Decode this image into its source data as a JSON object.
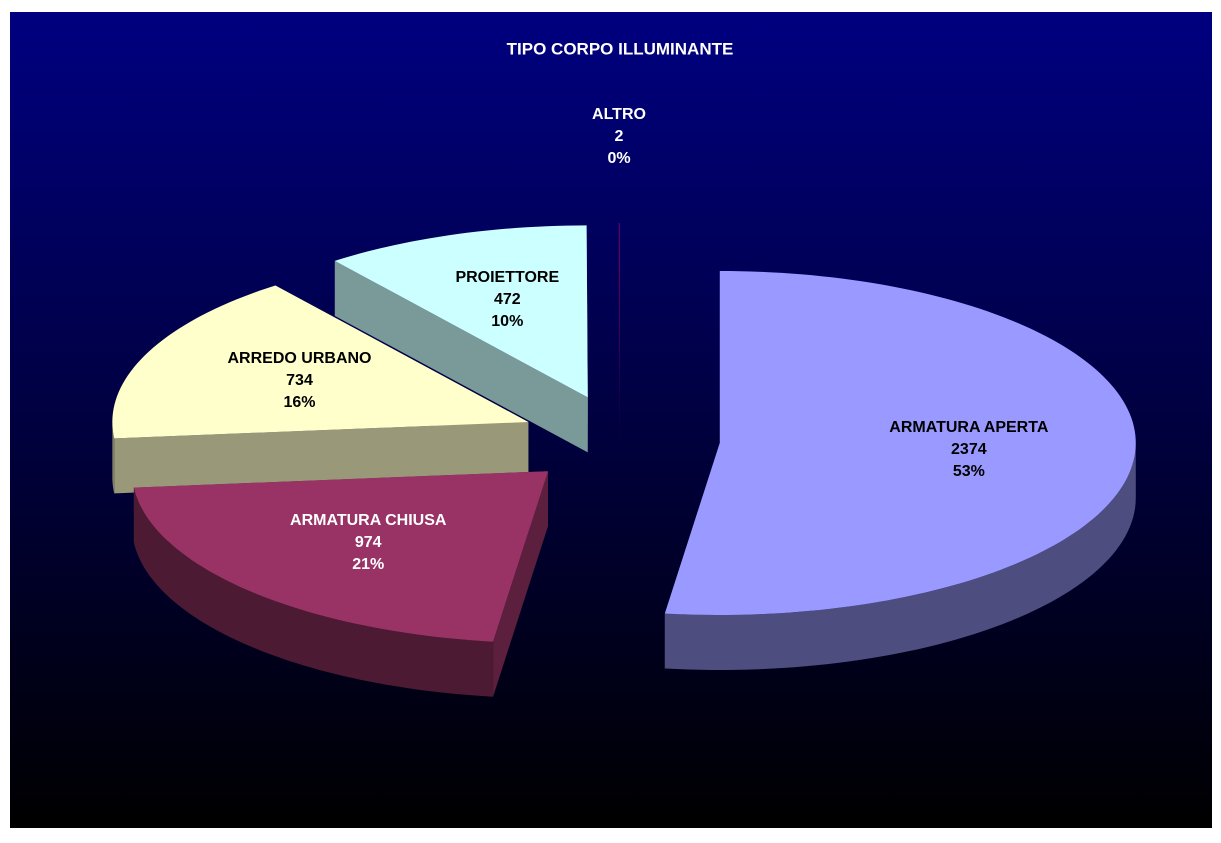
{
  "chart_data": {
    "type": "pie3d",
    "title": "TIPO CORPO ILLUMINANTE",
    "categories": [
      "ARMATURA APERTA",
      "ARMATURA CHIUSA",
      "ARREDO URBANO",
      "PROIETTORE",
      "ALTRO"
    ],
    "values": [
      2374,
      974,
      734,
      472,
      2
    ],
    "percent_labels": [
      "53%",
      "21%",
      "16%",
      "10%",
      "0%"
    ],
    "colors": [
      "#9999ff",
      "#993366",
      "#ffffcc",
      "#ccffff",
      "#660066"
    ],
    "exploded": true
  }
}
